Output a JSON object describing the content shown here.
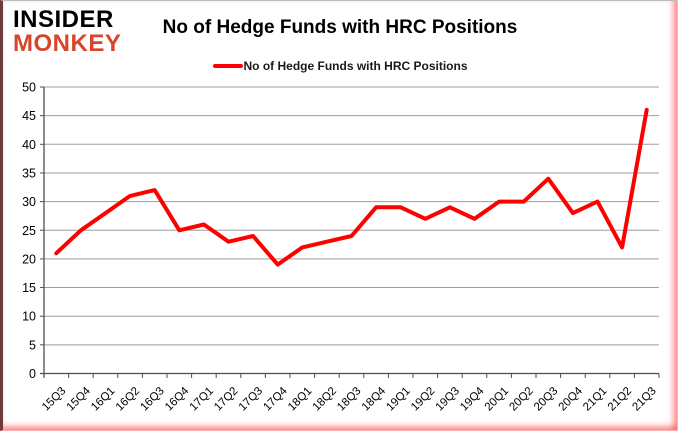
{
  "logo": {
    "line1": "INSIDER",
    "line2": "MONKEY",
    "line2_color": "#d9452c"
  },
  "title": "No of Hedge Funds with HRC Positions",
  "legend": {
    "label": "No of Hedge Funds with HRC Positions",
    "swatch_color": "#ff0000"
  },
  "colors": {
    "line": "#ff0000",
    "gridline": "#9d9d9d",
    "axis": "#4d4d4d",
    "tick_text": "#000000",
    "background": "#ffffff"
  },
  "chart_data": {
    "type": "line",
    "title": "No of Hedge Funds with HRC Positions",
    "xlabel": "",
    "ylabel": "",
    "grid": true,
    "legend_position": "top",
    "ylim": [
      0,
      50
    ],
    "yticks": [
      0,
      5,
      10,
      15,
      20,
      25,
      30,
      35,
      40,
      45,
      50
    ],
    "categories": [
      "15Q3",
      "15Q4",
      "16Q1",
      "16Q2",
      "16Q3",
      "16Q4",
      "17Q1",
      "17Q2",
      "17Q3",
      "17Q4",
      "18Q1",
      "18Q2",
      "18Q3",
      "18Q4",
      "19Q1",
      "19Q2",
      "19Q3",
      "19Q4",
      "20Q1",
      "20Q2",
      "20Q3",
      "20Q4",
      "21Q1",
      "21Q2",
      "21Q3"
    ],
    "series": [
      {
        "name": "No of Hedge Funds with HRC Positions",
        "color": "#ff0000",
        "values": [
          21,
          25,
          28,
          31,
          32,
          25,
          26,
          23,
          24,
          19,
          22,
          23,
          24,
          29,
          29,
          27,
          29,
          27,
          30,
          30,
          34,
          28,
          30,
          22,
          46
        ]
      }
    ]
  }
}
